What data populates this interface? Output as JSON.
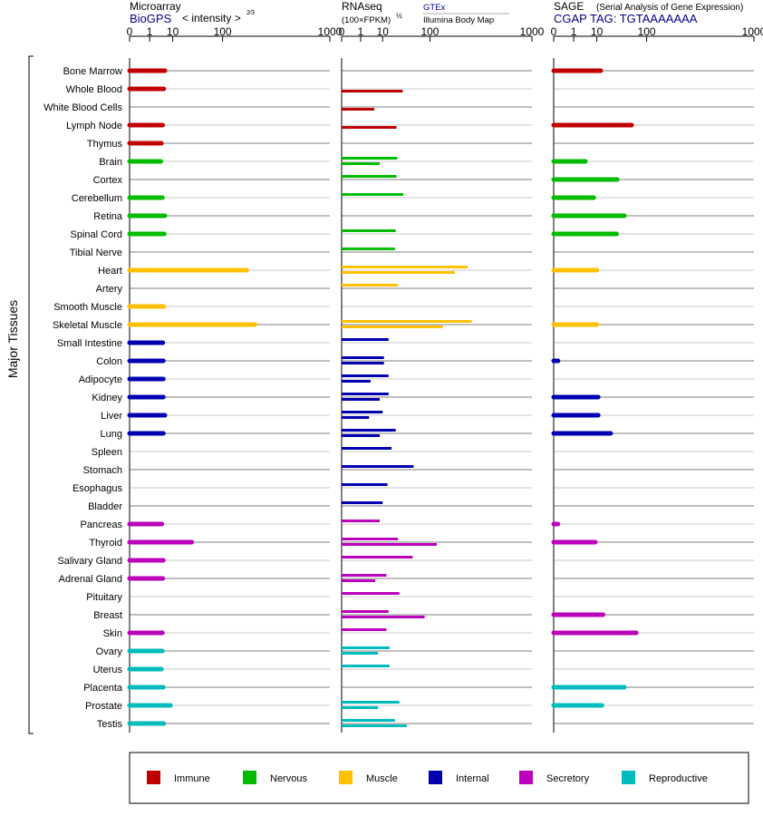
{
  "y_title": "Major Tissues",
  "panels": [
    {
      "title": "Microarray",
      "subtitle": "BioGPS",
      "unit": "< intensity >",
      "unit_sup": "2⁄3"
    },
    {
      "title": "RNAseq",
      "unit": "(100×FPKM)",
      "unit_sup": "½",
      "source_top": "GTEx",
      "source_bottom": "Illumina Body Map"
    },
    {
      "title": "SAGE",
      "note": "(Serial Analysis of Gene Expression)",
      "subtitle": "CGAP TAG: TGTAAAAAAA"
    }
  ],
  "colors": {
    "Immune": "#c00000",
    "Nervous": "#00bb00",
    "Muscle": "#ffc000",
    "Internal": "#0000b0",
    "Secretory": "#bb00bb",
    "Reproductive": "#00bbbb"
  },
  "legend": [
    "Immune",
    "Nervous",
    "Muscle",
    "Internal",
    "Secretory",
    "Reproductive"
  ],
  "chart_data": {
    "type": "bar",
    "x_ticks": [
      "0",
      "1",
      "10",
      "100",
      "1000"
    ],
    "x_scale": "power 1/3, range 0–1000",
    "tissues": [
      {
        "name": "Bone Marrow",
        "group": "Immune",
        "microarray": 5.5,
        "gtex": null,
        "bodymap": null,
        "sage": 13
      },
      {
        "name": "Whole Blood",
        "group": "Immune",
        "microarray": 5.0,
        "gtex": null,
        "bodymap": 33,
        "sage": null
      },
      {
        "name": "White Blood Cells",
        "group": "Immune",
        "microarray": null,
        "gtex": null,
        "bodymap": 5.0,
        "sage": null
      },
      {
        "name": "Lymph Node",
        "group": "Immune",
        "microarray": 4.5,
        "gtex": null,
        "bodymap": 24,
        "sage": 59
      },
      {
        "name": "Thymus",
        "group": "Immune",
        "microarray": 4.0,
        "gtex": null,
        "bodymap": null,
        "sage": null
      },
      {
        "name": "Brain",
        "group": "Nervous",
        "microarray": 3.8,
        "gtex": 25,
        "bodymap": 8.0,
        "sage": 4.0
      },
      {
        "name": "Cortex",
        "group": "Nervous",
        "microarray": null,
        "gtex": 24,
        "bodymap": null,
        "sage": 32
      },
      {
        "name": "Cerebellum",
        "group": "Nervous",
        "microarray": 4.4,
        "gtex": 34,
        "bodymap": null,
        "sage": 8.0
      },
      {
        "name": "Retina",
        "group": "Nervous",
        "microarray": 5.5,
        "gtex": null,
        "bodymap": null,
        "sage": 44
      },
      {
        "name": "Spinal Cord",
        "group": "Nervous",
        "microarray": 5.2,
        "gtex": 23,
        "bodymap": null,
        "sage": 31
      },
      {
        "name": "Tibial Nerve",
        "group": "Nervous",
        "microarray": null,
        "gtex": 22,
        "bodymap": null,
        "sage": null
      },
      {
        "name": "Heart",
        "group": "Muscle",
        "microarray": 200,
        "gtex": 290,
        "bodymap": 210,
        "sage": 10
      },
      {
        "name": "Artery",
        "group": "Muscle",
        "microarray": null,
        "gtex": 26,
        "bodymap": null,
        "sage": null
      },
      {
        "name": "Smooth Muscle",
        "group": "Muscle",
        "microarray": 5.0,
        "gtex": null,
        "bodymap": null,
        "sage": null
      },
      {
        "name": "Skeletal Muscle",
        "group": "Muscle",
        "microarray": 245,
        "gtex": 320,
        "bodymap": 150,
        "sage": 10
      },
      {
        "name": "Small Intestine",
        "group": "Internal",
        "microarray": 4.6,
        "gtex": 15,
        "bodymap": null,
        "sage": null
      },
      {
        "name": "Colon",
        "group": "Internal",
        "microarray": 4.8,
        "gtex": 11,
        "bodymap": 11,
        "sage": 0.01
      },
      {
        "name": "Adipocyte",
        "group": "Internal",
        "microarray": 4.8,
        "gtex": 15,
        "bodymap": 3.5,
        "sage": null
      },
      {
        "name": "Kidney",
        "group": "Internal",
        "microarray": 4.8,
        "gtex": 15,
        "bodymap": 8.0,
        "sage": 11
      },
      {
        "name": "Liver",
        "group": "Internal",
        "microarray": 5.5,
        "gtex": 10,
        "bodymap": 3.0,
        "sage": 11
      },
      {
        "name": "Lung",
        "group": "Internal",
        "microarray": 4.8,
        "gtex": 23,
        "bodymap": 8.0,
        "sage": 23
      },
      {
        "name": "Spleen",
        "group": "Internal",
        "microarray": null,
        "gtex": 18,
        "bodymap": null,
        "sage": null
      },
      {
        "name": "Stomach",
        "group": "Internal",
        "microarray": null,
        "gtex": 54,
        "bodymap": null,
        "sage": null
      },
      {
        "name": "Esophagus",
        "group": "Internal",
        "microarray": null,
        "gtex": 14,
        "bodymap": null,
        "sage": null
      },
      {
        "name": "Bladder",
        "group": "Internal",
        "microarray": null,
        "gtex": 10,
        "bodymap": null,
        "sage": null
      },
      {
        "name": "Pancreas",
        "group": "Secretory",
        "microarray": 4.2,
        "gtex": 8.0,
        "bodymap": null,
        "sage": 0.01
      },
      {
        "name": "Thyroid",
        "group": "Secretory",
        "microarray": 30,
        "gtex": 26,
        "bodymap": 125,
        "sage": 9.0
      },
      {
        "name": "Salivary Gland",
        "group": "Secretory",
        "microarray": 4.8,
        "gtex": 52,
        "bodymap": null,
        "sage": null
      },
      {
        "name": "Adrenal Gland",
        "group": "Secretory",
        "microarray": 4.6,
        "gtex": 13,
        "bodymap": 5.5,
        "sage": null
      },
      {
        "name": "Pituitary",
        "group": "Secretory",
        "microarray": null,
        "gtex": 28,
        "bodymap": null,
        "sage": null
      },
      {
        "name": "Breast",
        "group": "Secretory",
        "microarray": null,
        "gtex": 15,
        "bodymap": 83,
        "sage": 15
      },
      {
        "name": "Skin",
        "group": "Secretory",
        "microarray": 4.4,
        "gtex": 13,
        "bodymap": null,
        "sage": 70
      },
      {
        "name": "Ovary",
        "group": "Reproductive",
        "microarray": 4.4,
        "gtex": 16,
        "bodymap": 7.0,
        "sage": null
      },
      {
        "name": "Uterus",
        "group": "Reproductive",
        "microarray": 4.0,
        "gtex": 16,
        "bodymap": null,
        "sage": null
      },
      {
        "name": "Placenta",
        "group": "Reproductive",
        "microarray": 4.8,
        "gtex": null,
        "bodymap": null,
        "sage": 44
      },
      {
        "name": "Prostate",
        "group": "Reproductive",
        "microarray": 8.5,
        "gtex": 28,
        "bodymap": 7.0,
        "sage": 14
      },
      {
        "name": "Testis",
        "group": "Reproductive",
        "microarray": 5.0,
        "gtex": 22,
        "bodymap": 40,
        "sage": null
      }
    ]
  }
}
